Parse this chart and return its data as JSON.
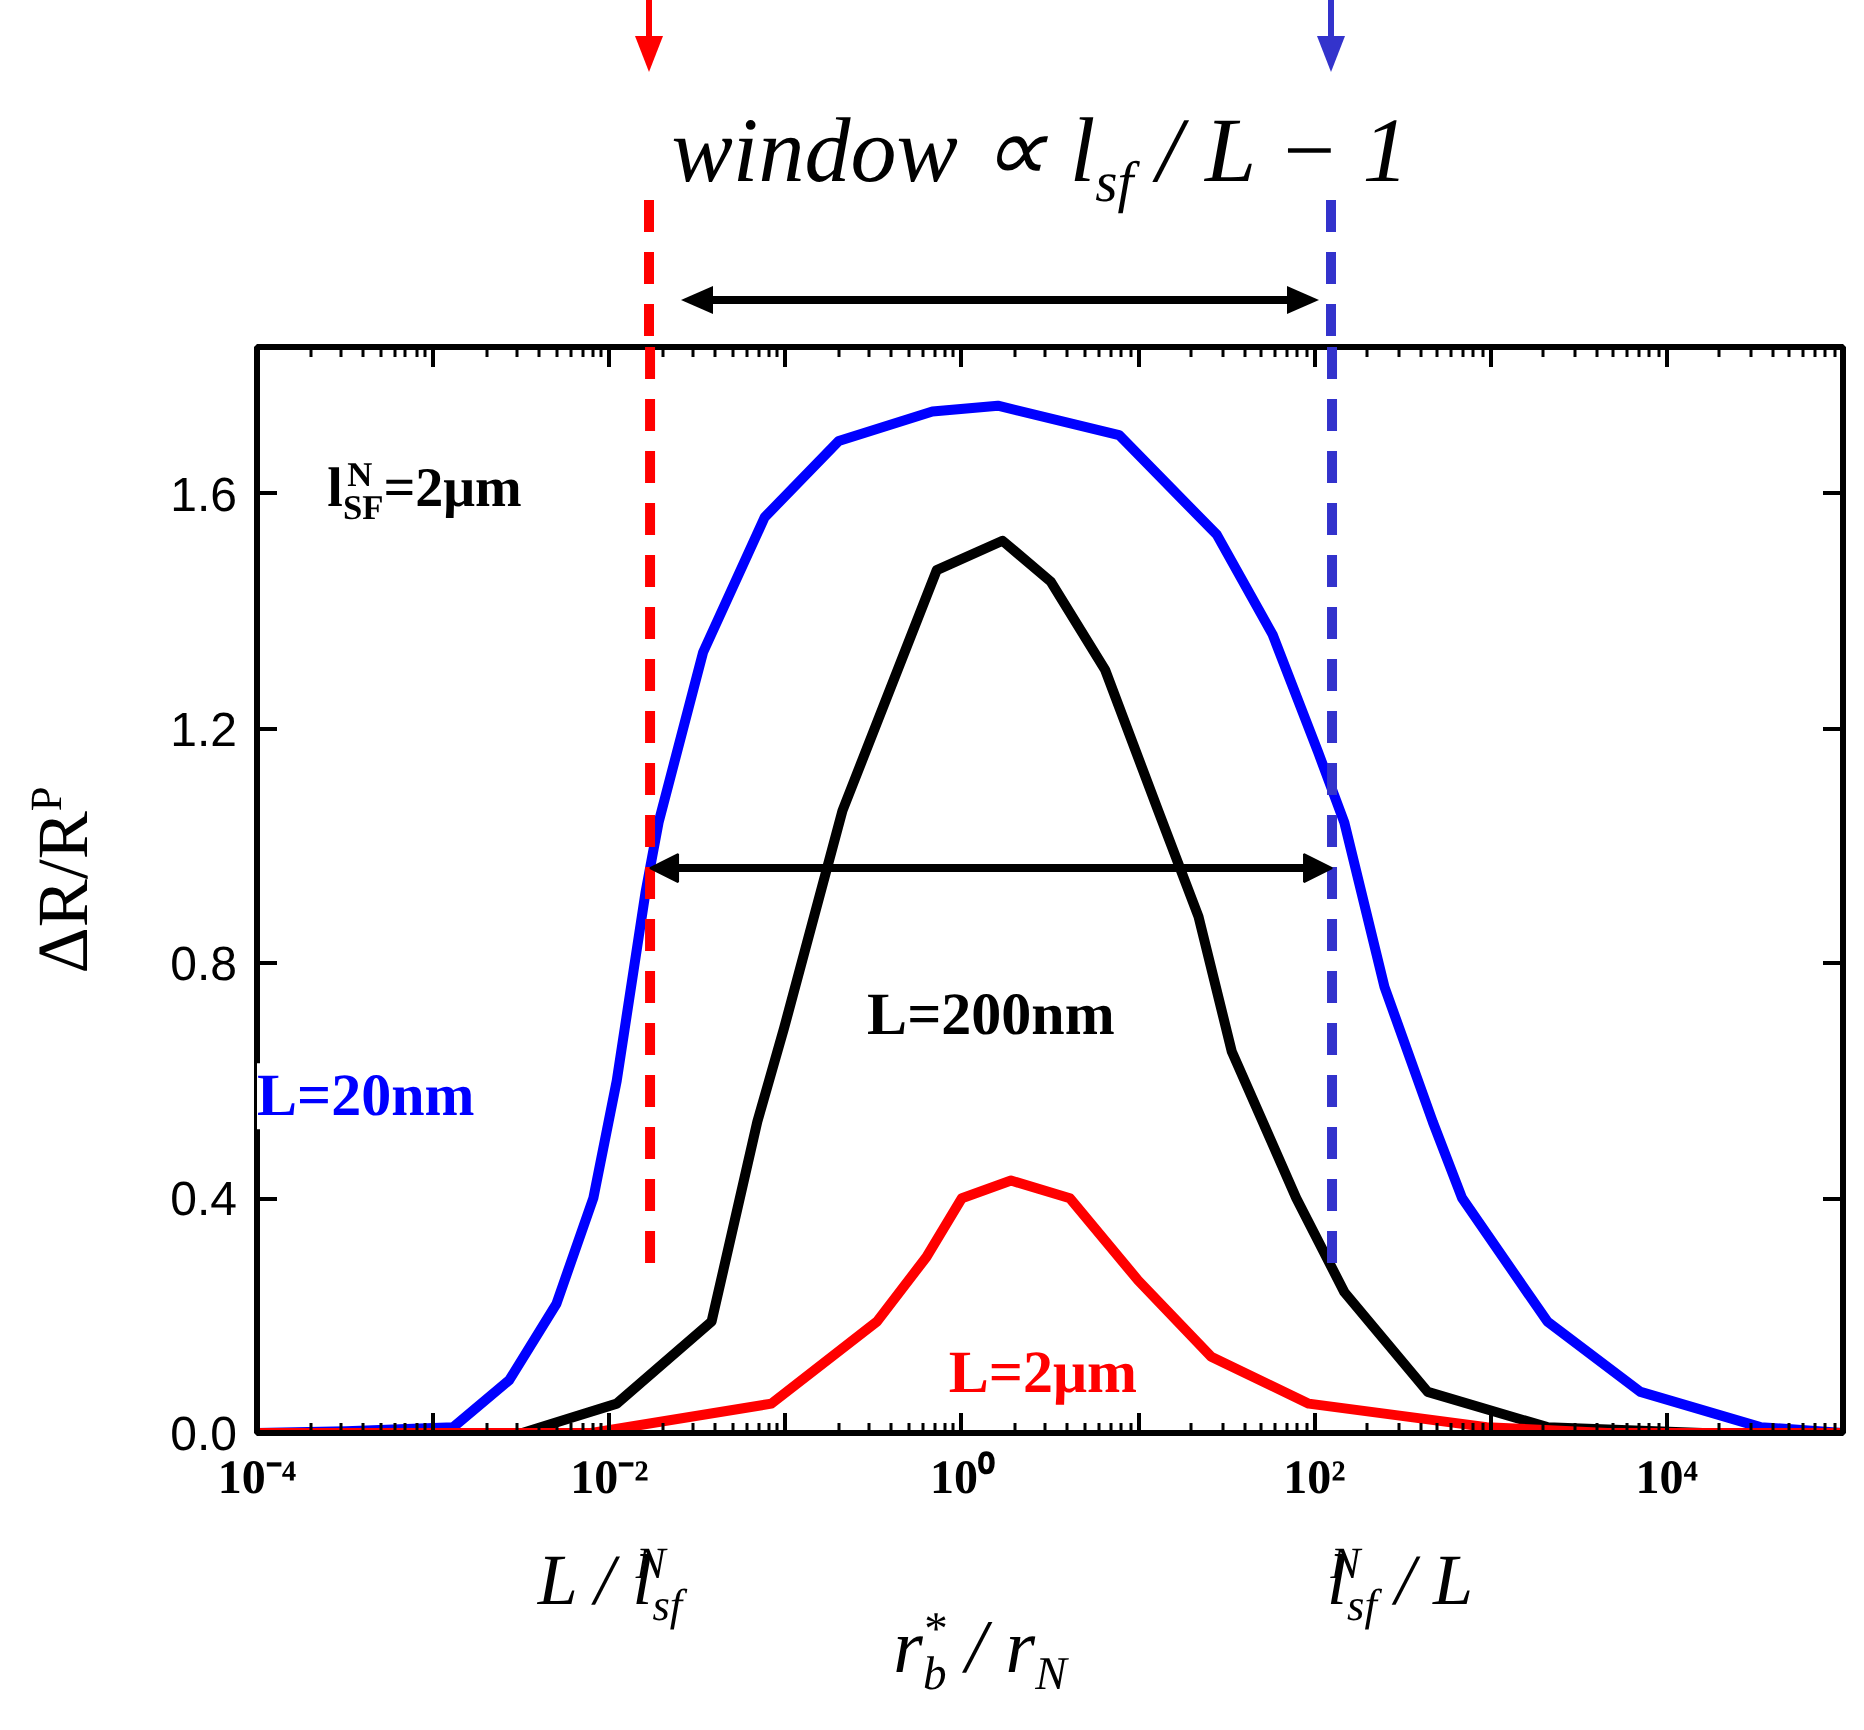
{
  "chart_data": {
    "type": "line",
    "ylabel": "ΔR/R$^{P}$",
    "xlabel": "r$_{b}$$^{*}$ / r$_{N}$",
    "annotations": [
      "window ∝ l$_{sf}$ / L − 1",
      "l$_{SF}$$^{N}$=2μm",
      "L / l$_{sf}$$^{N}$",
      "l$_{sf}$$^{N}$ / L"
    ],
    "xlim": [
      0.0001,
      100000
    ],
    "ylim": [
      0,
      1.85
    ],
    "log": "x",
    "xticks": [
      {
        "value": 0.0001,
        "label": "10⁻⁴"
      },
      {
        "value": 0.001,
        "label": null
      },
      {
        "value": 0.01,
        "label": "10⁻²"
      },
      {
        "value": 0.1,
        "label": null
      },
      {
        "value": 1,
        "label": "10⁰"
      },
      {
        "value": 10,
        "label": null
      },
      {
        "value": 100,
        "label": "10²"
      },
      {
        "value": 1000,
        "label": null
      },
      {
        "value": 10000,
        "label": "10⁴"
      }
    ],
    "yticks": [
      {
        "value": 0,
        "label": "0.0"
      },
      0.4,
      0.8,
      1.2,
      1.6
    ],
    "series": [
      {
        "name": "L=20nm",
        "color": "#0000ff",
        "x": [
          0.0001,
          0.00032,
          0.0013,
          0.0027,
          0.005,
          0.0081,
          0.011,
          0.016,
          0.019,
          0.034,
          0.076,
          0.2,
          0.68,
          1.6,
          7.8,
          28,
          58,
          105,
          148,
          250,
          470,
          690,
          2100,
          7100,
          34000,
          100000
        ],
        "values": [
          0,
          0.003,
          0.01,
          0.09,
          0.22,
          0.4,
          0.6,
          0.92,
          1.04,
          1.33,
          1.56,
          1.69,
          1.74,
          1.75,
          1.7,
          1.53,
          1.36,
          1.16,
          1.04,
          0.76,
          0.53,
          0.4,
          0.19,
          0.07,
          0.01,
          0
        ]
      },
      {
        "name": "L=200nm",
        "color": "#000000",
        "x": [
          0.0001,
          0.0032,
          0.011,
          0.038,
          0.069,
          0.098,
          0.21,
          0.72,
          1.7,
          3.2,
          6.5,
          13,
          22,
          34,
          79,
          148,
          440,
          2100,
          16000,
          100000
        ],
        "values": [
          0,
          0,
          0.05,
          0.19,
          0.53,
          0.69,
          1.06,
          1.47,
          1.52,
          1.45,
          1.3,
          1.06,
          0.88,
          0.65,
          0.4,
          0.24,
          0.07,
          0.01,
          0,
          0
        ]
      },
      {
        "name": "L=2μm",
        "color": "#ff0000",
        "x": [
          0.0001,
          0.0079,
          0.083,
          0.33,
          0.63,
          1,
          1.9,
          4.1,
          10,
          26,
          93,
          950,
          4600,
          100000
        ],
        "values": [
          0,
          0,
          0.05,
          0.19,
          0.3,
          0.4,
          0.43,
          0.4,
          0.26,
          0.13,
          0.05,
          0.01,
          0,
          0
        ]
      }
    ],
    "ref_lines": [
      {
        "axis": "x",
        "value": 0.017,
        "color": "#ff0000",
        "line_style": "dashed"
      },
      {
        "axis": "x",
        "value": 126,
        "color": "#3333cc",
        "line_style": "dashed"
      }
    ],
    "grid": false,
    "marker": "none",
    "line_style": "solid"
  }
}
